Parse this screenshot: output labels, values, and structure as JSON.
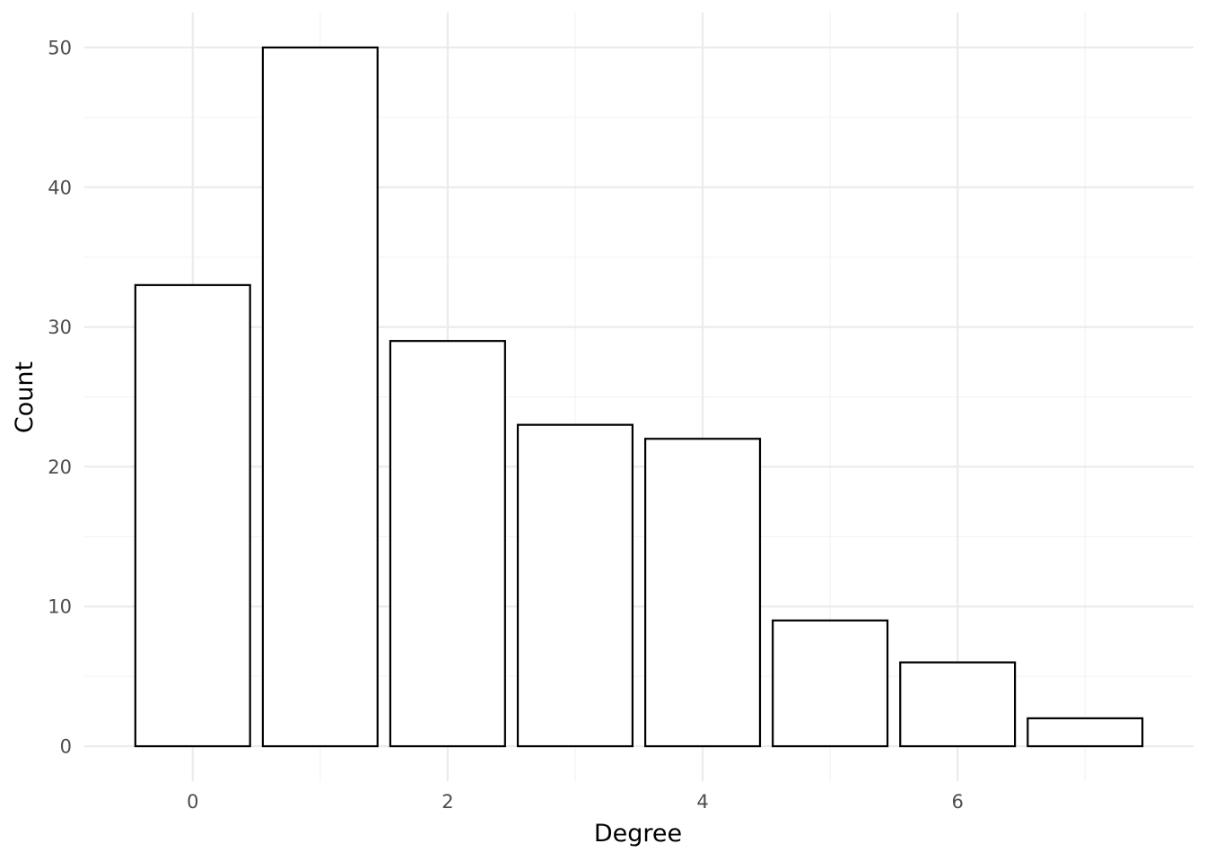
{
  "chart_data": {
    "type": "bar",
    "x": [
      0,
      1,
      2,
      3,
      4,
      5,
      6,
      7
    ],
    "values": [
      33,
      50,
      29,
      23,
      22,
      9,
      6,
      2
    ],
    "xlabel": "Degree",
    "ylabel": "Count",
    "x_ticks": [
      0,
      2,
      4,
      6
    ],
    "y_ticks": [
      0,
      10,
      20,
      30,
      40,
      50
    ],
    "xlim": [
      -0.85,
      7.85
    ],
    "ylim": [
      -2.5,
      52.5
    ],
    "grid": true,
    "bar_fill": "#ffffff",
    "bar_stroke": "#000000",
    "grid_color": "#ebebeb"
  }
}
